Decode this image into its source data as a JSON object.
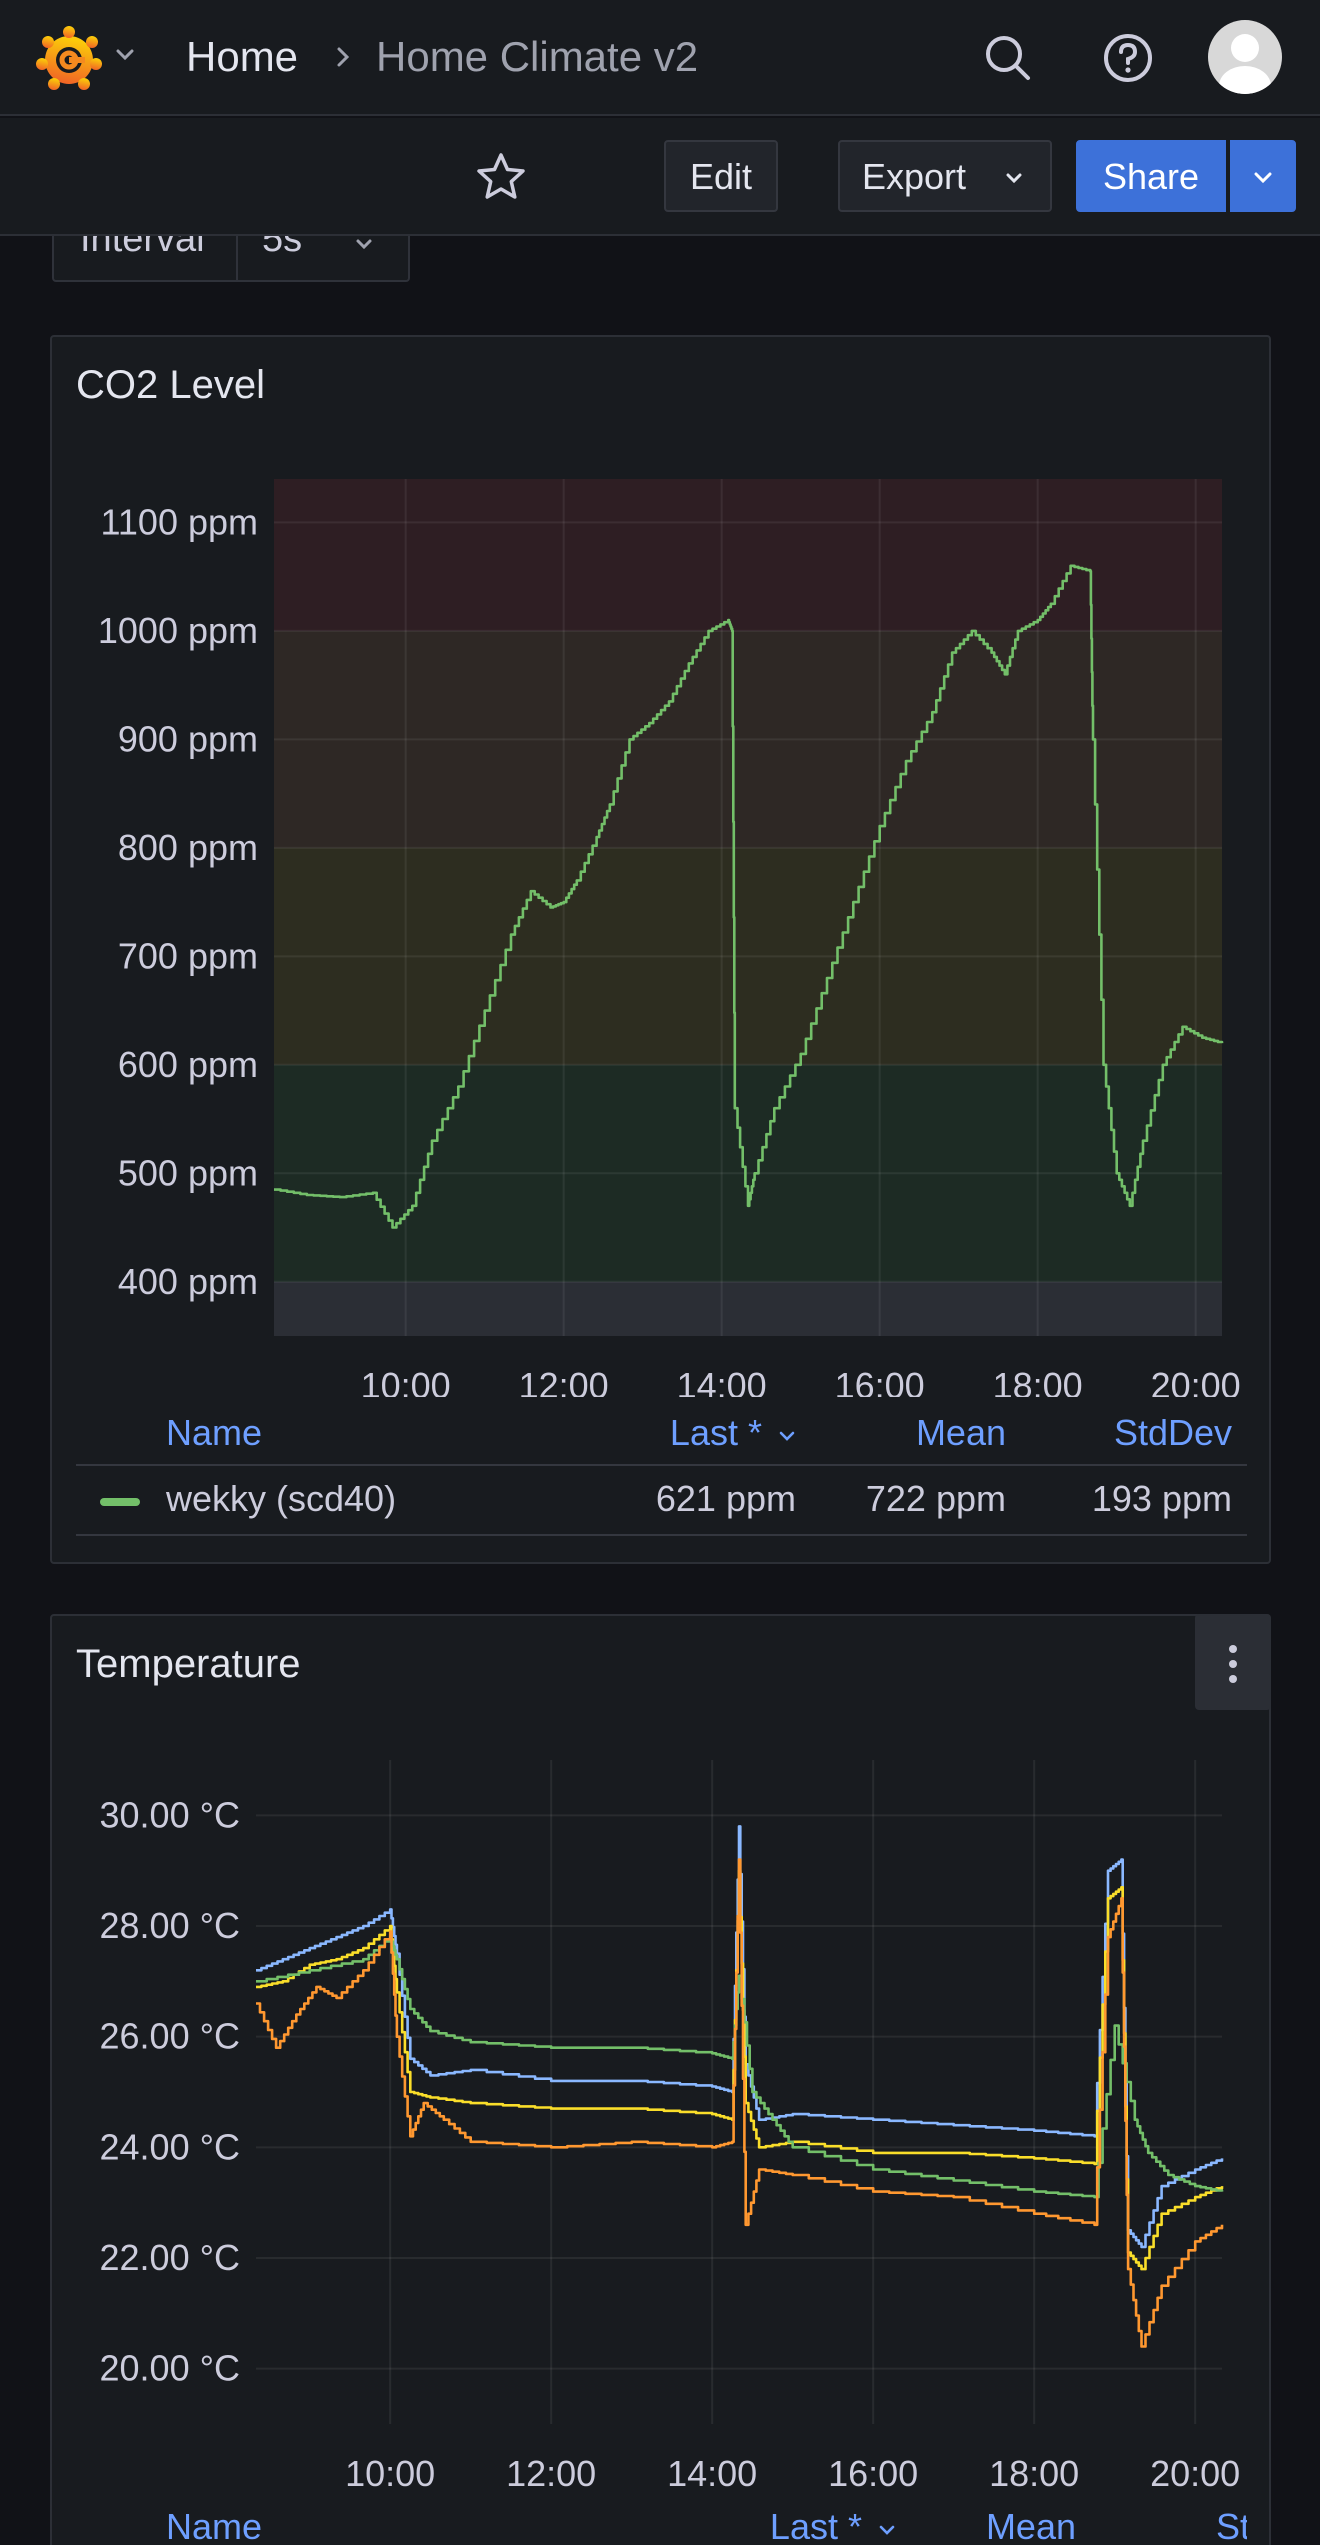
{
  "topbar": {
    "breadcrumb_home": "Home",
    "breadcrumb_current": "Home Climate v2"
  },
  "toolbar": {
    "edit_label": "Edit",
    "export_label": "Export",
    "share_label": "Share"
  },
  "variables": {
    "interval_label": "Interval",
    "interval_value": "5s"
  },
  "panels": {
    "co2": {
      "title": "CO2 Level",
      "legend_headers": [
        "Name",
        "Last *",
        "Mean",
        "StdDev"
      ],
      "legend_rows": [
        {
          "name": "wekky (scd40)",
          "last": "621 ppm",
          "mean": "722 ppm",
          "stddev": "193 ppm",
          "color": "#73bf69"
        }
      ]
    },
    "temperature": {
      "title": "Temperature",
      "legend_headers": [
        "Name",
        "Last *",
        "Mean",
        "Std"
      ]
    }
  },
  "colors": {
    "green": "#73bf69",
    "blue": "#8ab8ff",
    "yellow": "#fade2a",
    "orange": "#ff9830",
    "accent": "#3d71d9",
    "link": "#6e9fff"
  },
  "chart_data": [
    {
      "type": "line",
      "title": "CO2 Level",
      "xlabel": "",
      "ylabel": "",
      "xlim": [
        "08:20",
        "20:20"
      ],
      "ylim": [
        350,
        1140
      ],
      "x_ticks": [
        "10:00",
        "12:00",
        "14:00",
        "16:00",
        "18:00",
        "20:00"
      ],
      "y_ticks": [
        "400 ppm",
        "500 ppm",
        "600 ppm",
        "700 ppm",
        "800 ppm",
        "900 ppm",
        "1000 ppm",
        "1100 ppm"
      ],
      "thresholds": [
        {
          "from": 350,
          "to": 400,
          "color": "#2b2e35"
        },
        {
          "from": 400,
          "to": 600,
          "color": "#1d2b24"
        },
        {
          "from": 600,
          "to": 800,
          "color": "#2d2d20"
        },
        {
          "from": 800,
          "to": 1000,
          "color": "#2e2825"
        },
        {
          "from": 1000,
          "to": 1140,
          "color": "#2e1e23"
        }
      ],
      "grid": true,
      "legend": "bottom",
      "series": [
        {
          "name": "wekky (scd40)",
          "color": "#73bf69",
          "x": [
            "08:20",
            "08:45",
            "09:10",
            "09:35",
            "09:50",
            "10:05",
            "10:20",
            "10:40",
            "11:00",
            "11:20",
            "11:35",
            "11:50",
            "12:00",
            "12:10",
            "12:25",
            "12:35",
            "12:50",
            "13:05",
            "13:20",
            "13:35",
            "13:50",
            "14:05",
            "14:08",
            "14:10",
            "14:20",
            "14:25",
            "14:40",
            "15:00",
            "15:20",
            "15:40",
            "16:00",
            "16:20",
            "16:40",
            "16:55",
            "17:10",
            "17:25",
            "17:35",
            "17:45",
            "18:00",
            "18:10",
            "18:25",
            "18:40",
            "18:42",
            "18:50",
            "19:00",
            "19:10",
            "19:20",
            "19:35",
            "19:50",
            "20:05",
            "20:20"
          ],
          "y": [
            485,
            480,
            478,
            482,
            450,
            470,
            530,
            580,
            650,
            720,
            760,
            745,
            750,
            770,
            810,
            840,
            900,
            915,
            935,
            970,
            1000,
            1010,
            1000,
            560,
            470,
            500,
            560,
            610,
            680,
            750,
            820,
            880,
            925,
            980,
            1000,
            980,
            960,
            1000,
            1010,
            1025,
            1060,
            1055,
            900,
            600,
            500,
            470,
            530,
            600,
            635,
            625,
            620
          ]
        }
      ]
    },
    {
      "type": "line",
      "title": "Temperature",
      "xlabel": "",
      "ylabel": "",
      "xlim": [
        "08:20",
        "20:20"
      ],
      "ylim": [
        19.0,
        31.0
      ],
      "x_ticks": [
        "10:00",
        "12:00",
        "14:00",
        "16:00",
        "18:00",
        "20:00"
      ],
      "y_ticks": [
        "20.00 °C",
        "22.00 °C",
        "24.00 °C",
        "26.00 °C",
        "28.00 °C",
        "30.00 °C"
      ],
      "grid": true,
      "legend": "bottom",
      "series": [
        {
          "color": "#8ab8ff",
          "x": [
            "08:20",
            "08:40",
            "09:00",
            "09:20",
            "09:40",
            "10:00",
            "10:05",
            "10:15",
            "10:30",
            "11:00",
            "12:00",
            "13:00",
            "14:00",
            "14:15",
            "14:20",
            "14:25",
            "14:35",
            "15:00",
            "16:00",
            "17:00",
            "18:00",
            "18:45",
            "18:55",
            "19:05",
            "19:10",
            "19:20",
            "19:35",
            "20:00",
            "20:20"
          ],
          "y": [
            27.2,
            27.4,
            27.6,
            27.8,
            28.0,
            28.3,
            27.5,
            25.6,
            25.3,
            25.4,
            25.2,
            25.2,
            25.1,
            25.0,
            29.8,
            25.5,
            24.5,
            24.6,
            24.5,
            24.4,
            24.3,
            24.2,
            29.0,
            29.2,
            22.5,
            22.2,
            23.3,
            23.6,
            23.8
          ]
        },
        {
          "color": "#fade2a",
          "x": [
            "08:20",
            "08:40",
            "09:00",
            "09:20",
            "09:40",
            "10:00",
            "10:05",
            "10:15",
            "10:30",
            "11:00",
            "12:00",
            "13:00",
            "14:00",
            "14:15",
            "14:20",
            "14:25",
            "14:35",
            "15:00",
            "16:00",
            "17:00",
            "18:00",
            "18:45",
            "18:55",
            "19:05",
            "19:10",
            "19:20",
            "19:35",
            "20:00",
            "20:20"
          ],
          "y": [
            26.9,
            27.0,
            27.3,
            27.4,
            27.6,
            28.0,
            26.8,
            25.0,
            24.9,
            24.8,
            24.7,
            24.7,
            24.6,
            24.5,
            29.0,
            24.8,
            24.0,
            24.1,
            23.9,
            23.9,
            23.8,
            23.7,
            28.5,
            28.7,
            22.1,
            21.8,
            22.8,
            23.1,
            23.3
          ]
        },
        {
          "color": "#73bf69",
          "x": [
            "08:20",
            "09:00",
            "09:40",
            "10:00",
            "10:05",
            "10:15",
            "10:30",
            "11:00",
            "12:00",
            "13:00",
            "14:00",
            "14:15",
            "14:20",
            "14:30",
            "14:45",
            "15:00",
            "16:00",
            "17:00",
            "18:00",
            "18:45",
            "19:00",
            "19:15",
            "19:25",
            "19:40",
            "20:00",
            "20:20"
          ],
          "y": [
            27.0,
            27.2,
            27.4,
            27.8,
            27.4,
            26.5,
            26.1,
            25.9,
            25.8,
            25.8,
            25.7,
            25.6,
            27.1,
            25.0,
            24.5,
            24.0,
            23.6,
            23.4,
            23.2,
            23.1,
            26.2,
            24.5,
            23.9,
            23.5,
            23.3,
            23.2
          ]
        },
        {
          "color": "#ff9830",
          "x": [
            "08:20",
            "08:35",
            "08:50",
            "09:05",
            "09:20",
            "09:40",
            "10:00",
            "10:05",
            "10:15",
            "10:25",
            "10:40",
            "11:00",
            "12:00",
            "13:00",
            "14:00",
            "14:15",
            "14:20",
            "14:25",
            "14:35",
            "15:00",
            "16:00",
            "17:00",
            "18:00",
            "18:45",
            "18:55",
            "19:05",
            "19:10",
            "19:20",
            "19:35",
            "20:00",
            "20:20"
          ],
          "y": [
            26.6,
            25.8,
            26.4,
            26.9,
            26.7,
            27.2,
            27.9,
            26.0,
            24.2,
            24.8,
            24.5,
            24.1,
            24.0,
            24.1,
            24.0,
            24.1,
            29.2,
            22.6,
            23.6,
            23.5,
            23.2,
            23.1,
            22.8,
            22.6,
            27.8,
            28.5,
            21.8,
            20.4,
            21.5,
            22.3,
            22.6
          ]
        }
      ]
    }
  ]
}
